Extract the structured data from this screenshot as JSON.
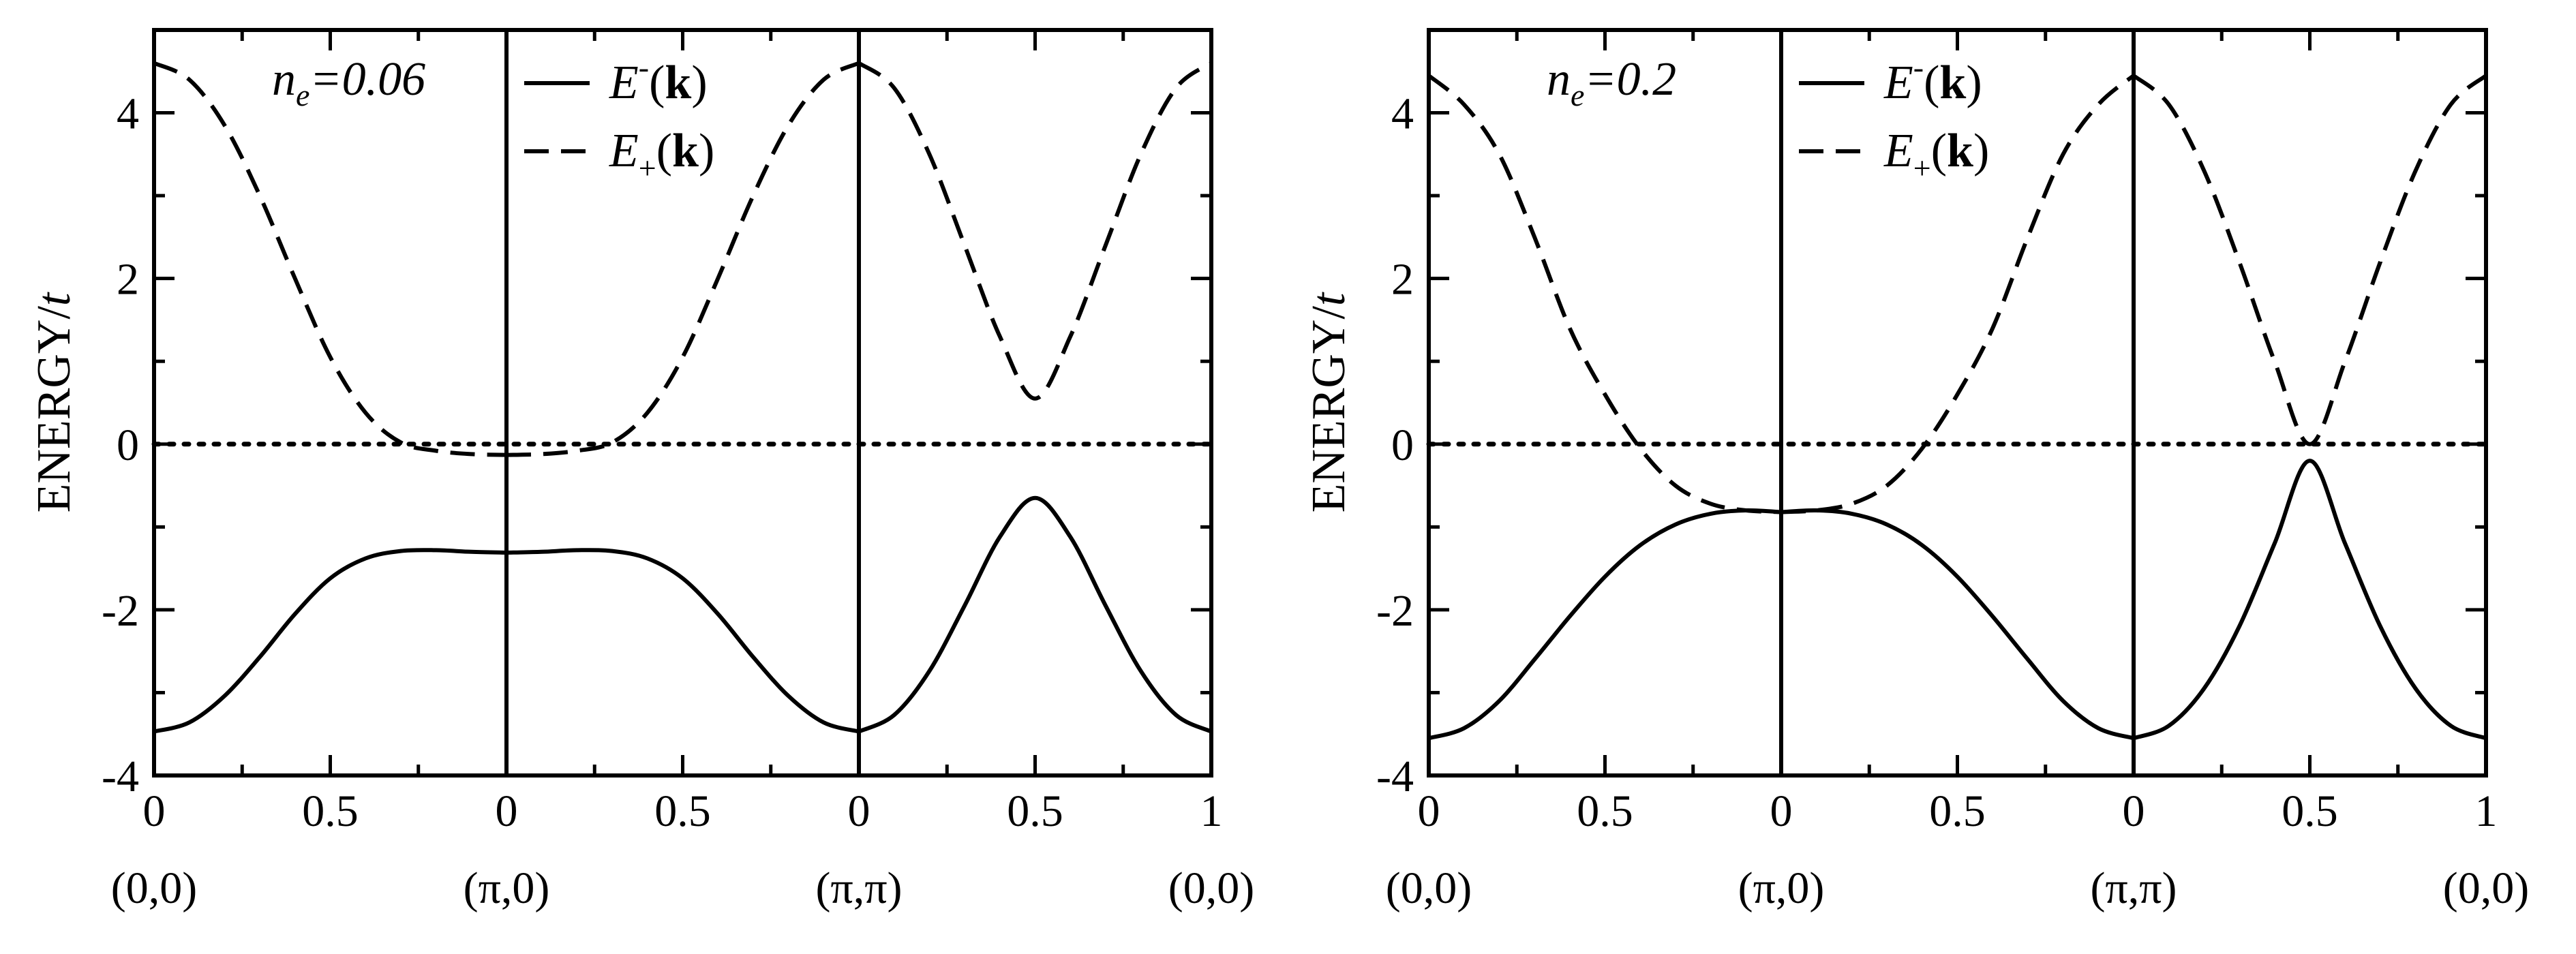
{
  "chart_data": [
    {
      "type": "line",
      "ylabel": "ENERGY/t",
      "ylim": [
        -4,
        5
      ],
      "yticks": [
        -4,
        -2,
        0,
        2,
        4
      ],
      "ytick_labels": [
        "-4",
        "-2",
        "0",
        "2",
        "4"
      ],
      "segments": [
        {
          "x_ticks": [
            "0",
            "0.5"
          ],
          "start_label": "(0,0)"
        },
        {
          "x_ticks": [
            "0",
            "0.5"
          ],
          "start_label": "(π,0)"
        },
        {
          "x_ticks": [
            "0",
            "0.5",
            "1"
          ],
          "start_label": "(π,π)",
          "end_label": "(0,0)"
        }
      ],
      "annotation": {
        "n": "n",
        "sub": "e",
        "value": "=0.06"
      },
      "legend": {
        "placement": "top-center",
        "entries": [
          {
            "base": "E",
            "sup": "-",
            "arg": "(k)",
            "style": "solid"
          },
          {
            "base": "E",
            "sub": "+",
            "arg": "(k)",
            "style": "dashed"
          }
        ]
      },
      "series": [
        {
          "style": "solid",
          "segments": [
            [
              [
                0,
                -3.47
              ],
              [
                0.1,
                -3.36
              ],
              [
                0.2,
                -3.04
              ],
              [
                0.3,
                -2.57
              ],
              [
                0.4,
                -2.05
              ],
              [
                0.5,
                -1.62
              ],
              [
                0.6,
                -1.38
              ],
              [
                0.7,
                -1.29
              ],
              [
                0.8,
                -1.28
              ],
              [
                0.9,
                -1.3
              ],
              [
                1,
                -1.31
              ]
            ],
            [
              [
                0,
                -1.31
              ],
              [
                0.1,
                -1.3
              ],
              [
                0.2,
                -1.28
              ],
              [
                0.3,
                -1.29
              ],
              [
                0.4,
                -1.38
              ],
              [
                0.5,
                -1.62
              ],
              [
                0.6,
                -2.05
              ],
              [
                0.7,
                -2.57
              ],
              [
                0.8,
                -3.04
              ],
              [
                0.9,
                -3.36
              ],
              [
                1,
                -3.47
              ]
            ],
            [
              [
                0,
                -3.47
              ],
              [
                0.1,
                -3.27
              ],
              [
                0.2,
                -2.74
              ],
              [
                0.3,
                -1.95
              ],
              [
                0.4,
                -1.12
              ],
              [
                0.5,
                -0.65
              ],
              [
                0.6,
                -1.12
              ],
              [
                0.7,
                -1.95
              ],
              [
                0.8,
                -2.74
              ],
              [
                0.9,
                -3.27
              ],
              [
                1,
                -3.47
              ]
            ]
          ]
        },
        {
          "style": "dashed",
          "segments": [
            [
              [
                0,
                4.6
              ],
              [
                0.1,
                4.4
              ],
              [
                0.2,
                3.85
              ],
              [
                0.3,
                3.0
              ],
              [
                0.4,
                2.0
              ],
              [
                0.5,
                1.05
              ],
              [
                0.6,
                0.38
              ],
              [
                0.7,
                0.02
              ],
              [
                0.8,
                -0.08
              ],
              [
                0.9,
                -0.12
              ],
              [
                1,
                -0.13
              ]
            ],
            [
              [
                0,
                -0.13
              ],
              [
                0.1,
                -0.12
              ],
              [
                0.2,
                -0.08
              ],
              [
                0.3,
                0.02
              ],
              [
                0.4,
                0.38
              ],
              [
                0.5,
                1.05
              ],
              [
                0.6,
                2.0
              ],
              [
                0.7,
                3.0
              ],
              [
                0.8,
                3.85
              ],
              [
                0.9,
                4.4
              ],
              [
                1,
                4.6
              ]
            ],
            [
              [
                0,
                4.6
              ],
              [
                0.1,
                4.3
              ],
              [
                0.2,
                3.5
              ],
              [
                0.3,
                2.4
              ],
              [
                0.4,
                1.3
              ],
              [
                0.5,
                0.55
              ],
              [
                0.6,
                1.3
              ],
              [
                0.7,
                2.4
              ],
              [
                0.8,
                3.5
              ],
              [
                0.9,
                4.3
              ],
              [
                1,
                4.6
              ]
            ]
          ]
        }
      ]
    },
    {
      "type": "line",
      "ylabel": "ENERGY/t",
      "ylim": [
        -4,
        5
      ],
      "yticks": [
        -4,
        -2,
        0,
        2,
        4
      ],
      "ytick_labels": [
        "-4",
        "-2",
        "0",
        "2",
        "4"
      ],
      "segments": [
        {
          "x_ticks": [
            "0",
            "0.5"
          ],
          "start_label": "(0,0)"
        },
        {
          "x_ticks": [
            "0",
            "0.5"
          ],
          "start_label": "(π,0)"
        },
        {
          "x_ticks": [
            "0",
            "0.5",
            "1"
          ],
          "start_label": "(π,π)",
          "end_label": "(0,0)"
        }
      ],
      "annotation": {
        "n": "n",
        "sub": "e",
        "value": "=0.2"
      },
      "legend": {
        "placement": "top-center",
        "entries": [
          {
            "base": "E",
            "sup": "-",
            "arg": "(k)",
            "style": "solid"
          },
          {
            "base": "E",
            "sub": "+",
            "arg": "(k)",
            "style": "dashed"
          }
        ]
      },
      "series": [
        {
          "style": "solid",
          "segments": [
            [
              [
                0,
                -3.55
              ],
              [
                0.1,
                -3.43
              ],
              [
                0.2,
                -3.1
              ],
              [
                0.3,
                -2.6
              ],
              [
                0.4,
                -2.08
              ],
              [
                0.5,
                -1.6
              ],
              [
                0.6,
                -1.22
              ],
              [
                0.7,
                -0.97
              ],
              [
                0.8,
                -0.84
              ],
              [
                0.9,
                -0.8
              ],
              [
                1,
                -0.82
              ]
            ],
            [
              [
                0,
                -0.82
              ],
              [
                0.1,
                -0.8
              ],
              [
                0.2,
                -0.84
              ],
              [
                0.3,
                -0.97
              ],
              [
                0.4,
                -1.22
              ],
              [
                0.5,
                -1.6
              ],
              [
                0.6,
                -2.08
              ],
              [
                0.7,
                -2.6
              ],
              [
                0.8,
                -3.1
              ],
              [
                0.9,
                -3.43
              ],
              [
                1,
                -3.55
              ]
            ],
            [
              [
                0,
                -3.55
              ],
              [
                0.1,
                -3.4
              ],
              [
                0.2,
                -2.95
              ],
              [
                0.3,
                -2.2
              ],
              [
                0.4,
                -1.2
              ],
              [
                0.5,
                -0.2
              ],
              [
                0.6,
                -1.2
              ],
              [
                0.7,
                -2.2
              ],
              [
                0.8,
                -2.95
              ],
              [
                0.9,
                -3.4
              ],
              [
                1,
                -3.55
              ]
            ]
          ]
        },
        {
          "style": "dashed",
          "segments": [
            [
              [
                0,
                4.45
              ],
              [
                0.1,
                4.1
              ],
              [
                0.2,
                3.5
              ],
              [
                0.3,
                2.5
              ],
              [
                0.4,
                1.4
              ],
              [
                0.5,
                0.6
              ],
              [
                0.6,
                -0.05
              ],
              [
                0.7,
                -0.5
              ],
              [
                0.8,
                -0.72
              ],
              [
                0.9,
                -0.8
              ],
              [
                1,
                -0.82
              ]
            ],
            [
              [
                0,
                -0.82
              ],
              [
                0.1,
                -0.8
              ],
              [
                0.2,
                -0.72
              ],
              [
                0.3,
                -0.5
              ],
              [
                0.4,
                -0.05
              ],
              [
                0.5,
                0.6
              ],
              [
                0.6,
                1.4
              ],
              [
                0.7,
                2.5
              ],
              [
                0.8,
                3.5
              ],
              [
                0.9,
                4.1
              ],
              [
                1,
                4.45
              ]
            ],
            [
              [
                0,
                4.45
              ],
              [
                0.1,
                4.1
              ],
              [
                0.2,
                3.3
              ],
              [
                0.3,
                2.2
              ],
              [
                0.4,
                1.0
              ],
              [
                0.5,
                0.0
              ],
              [
                0.6,
                1.0
              ],
              [
                0.7,
                2.2
              ],
              [
                0.8,
                3.3
              ],
              [
                0.9,
                4.1
              ],
              [
                1,
                4.45
              ]
            ]
          ]
        }
      ]
    }
  ]
}
